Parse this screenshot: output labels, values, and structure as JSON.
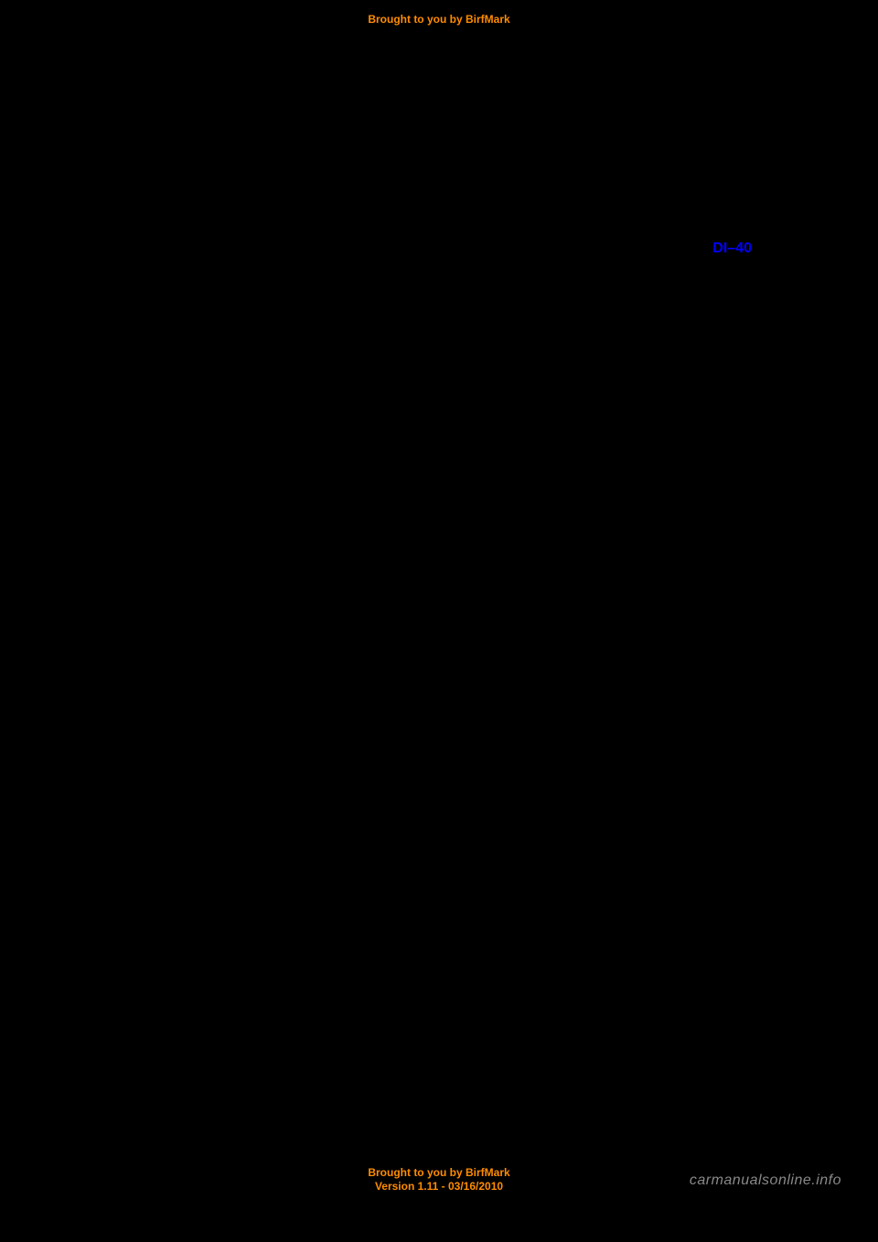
{
  "header": {
    "attribution": "Brought to you by BirfMark"
  },
  "content": {
    "page_reference": "DI–40"
  },
  "footer": {
    "attribution": "Brought to you by BirfMark",
    "version": "Version 1.11 - 03/16/2010"
  },
  "watermark": {
    "text": "carmanualsonline.info"
  },
  "colors": {
    "background": "#000000",
    "accent": "#ff8c00",
    "link": "#0000ff",
    "watermark": "#888888"
  }
}
